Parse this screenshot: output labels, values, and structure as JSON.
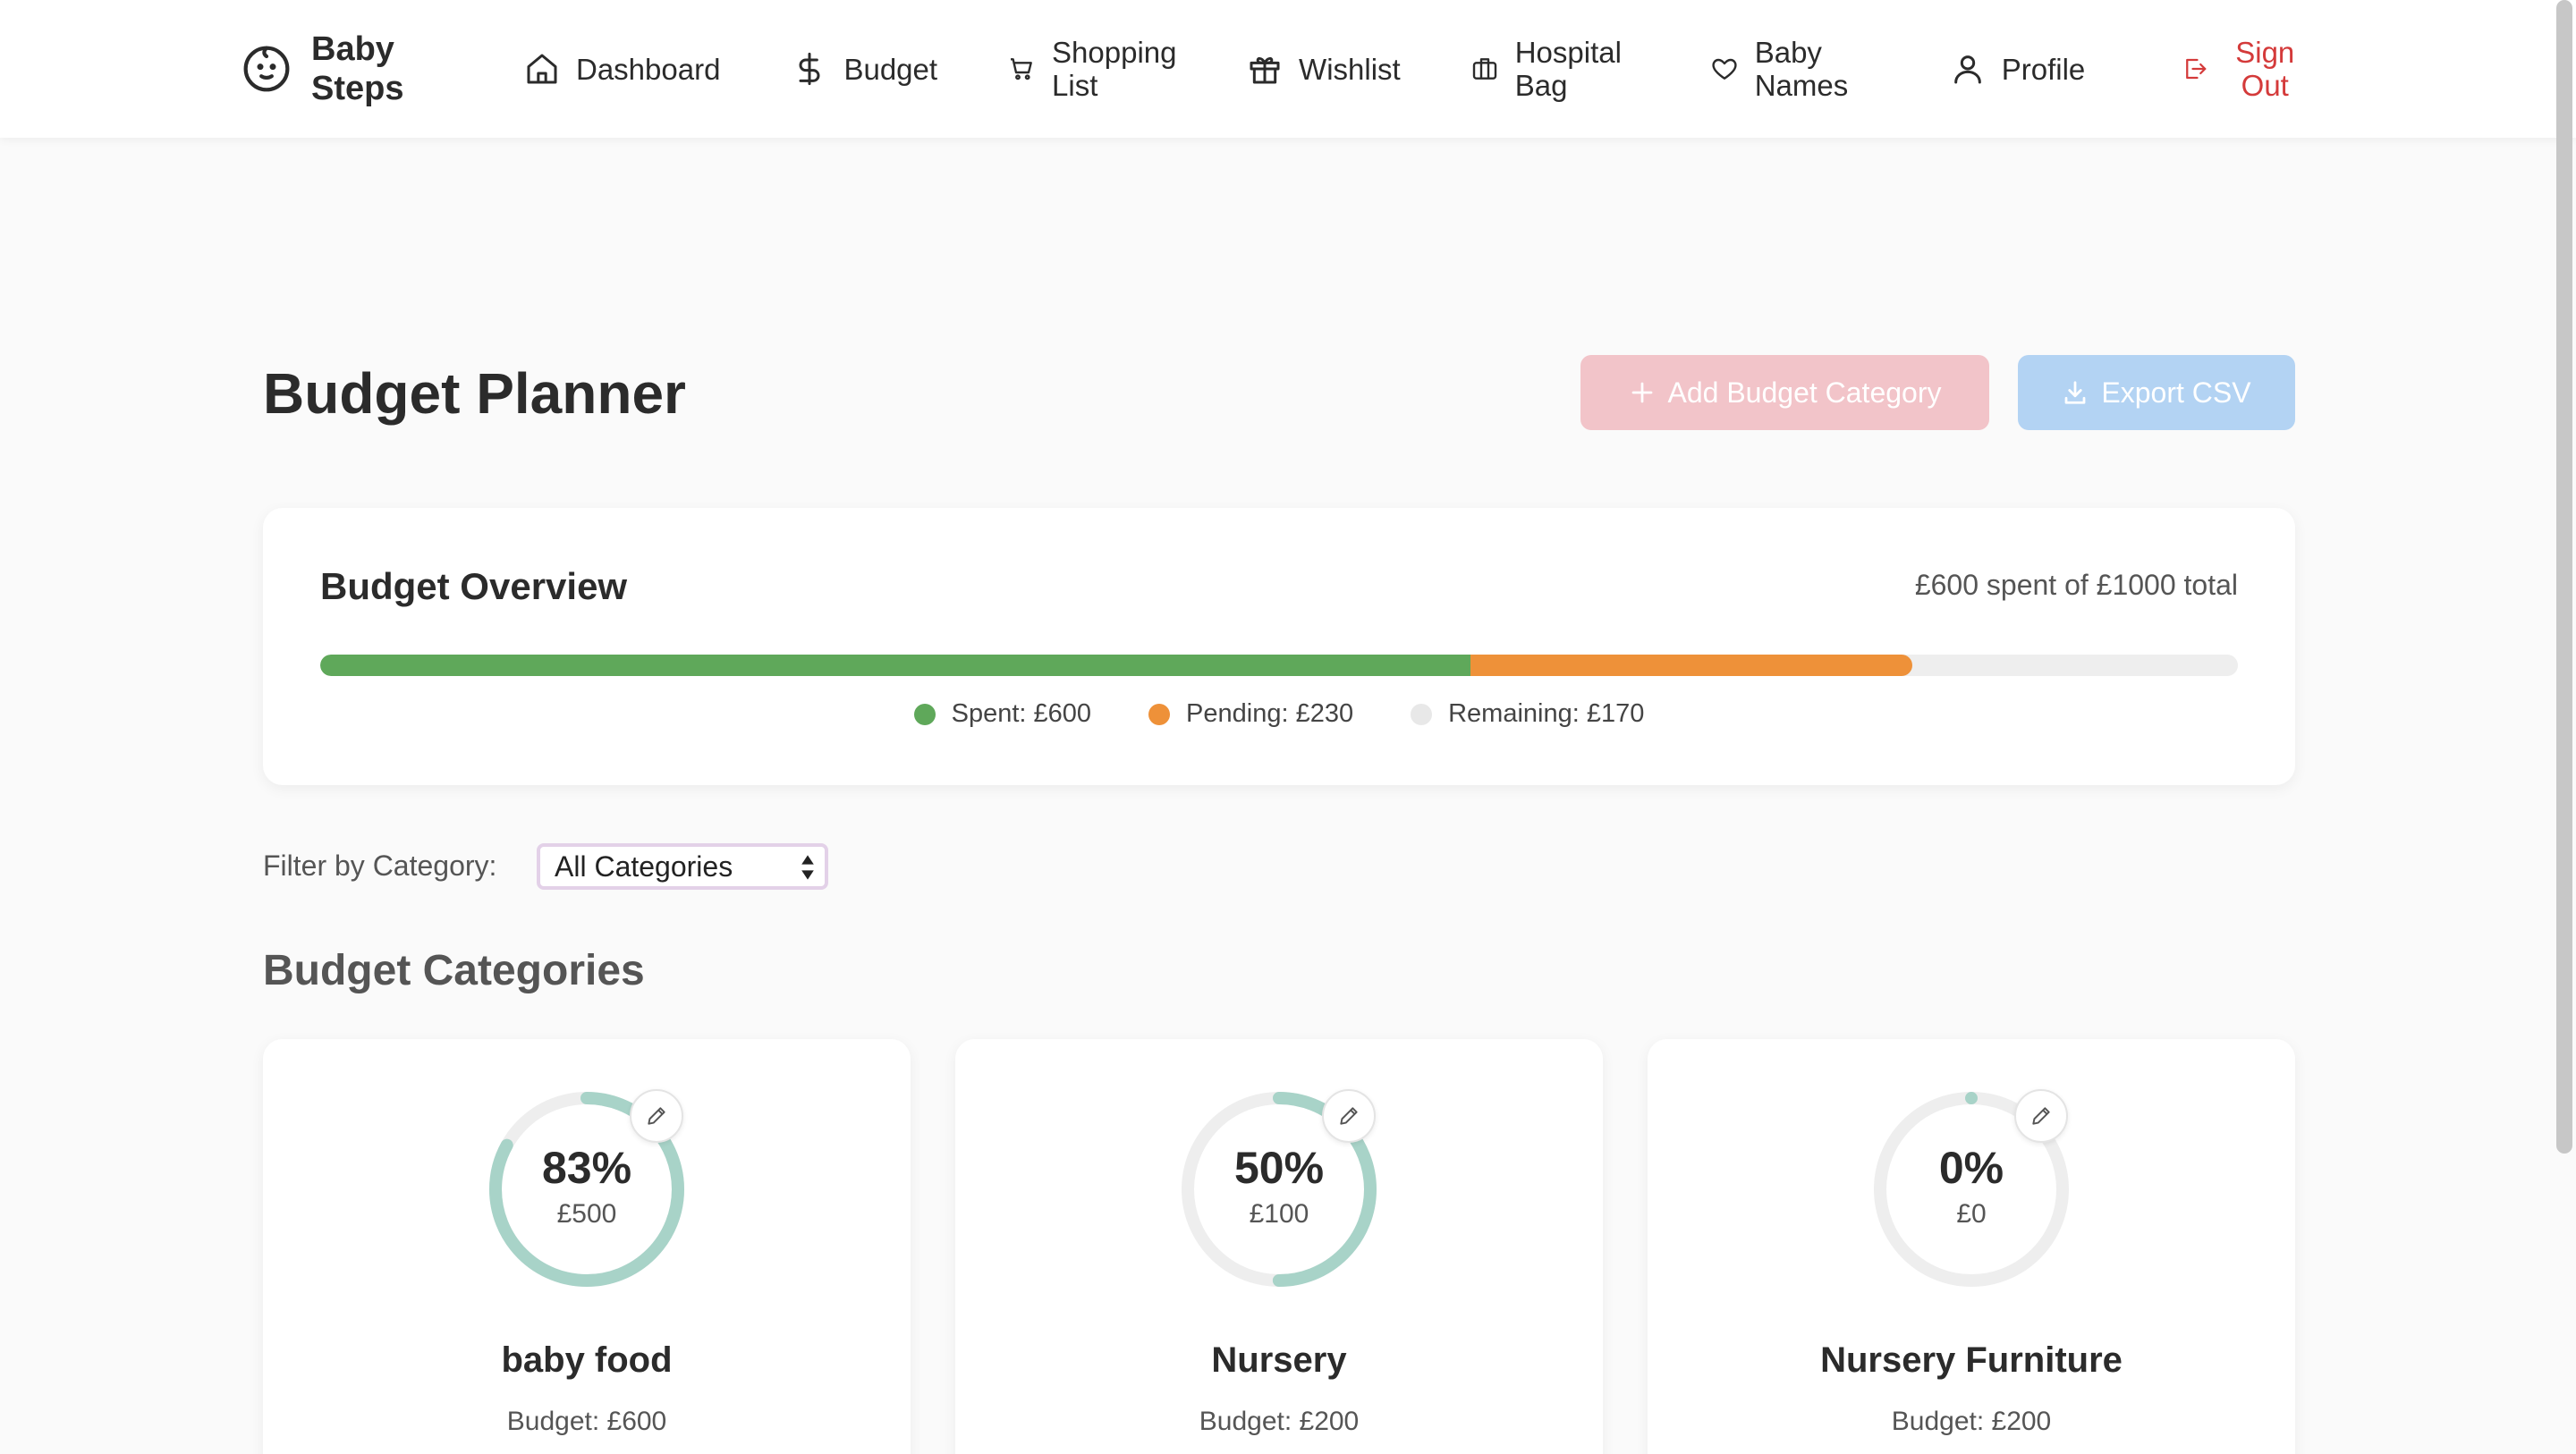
{
  "nav": {
    "brand": "Baby Steps",
    "items": [
      {
        "label": "Dashboard",
        "icon": "home-icon"
      },
      {
        "label": "Budget",
        "icon": "dollar-icon"
      },
      {
        "label": "Shopping List",
        "icon": "cart-icon"
      },
      {
        "label": "Wishlist",
        "icon": "gift-icon"
      },
      {
        "label": "Hospital Bag",
        "icon": "briefcase-icon"
      },
      {
        "label": "Baby Names",
        "icon": "heart-icon"
      },
      {
        "label": "Profile",
        "icon": "user-icon"
      }
    ],
    "signout": {
      "label": "Sign Out",
      "icon": "logout-icon",
      "color": "#d43a3a"
    }
  },
  "header": {
    "title": "Budget Planner",
    "add_label": "Add Budget Category",
    "export_label": "Export CSV"
  },
  "overview": {
    "title": "Budget Overview",
    "summary": "£600 spent of £1000 total",
    "total": 1000,
    "spent": 600,
    "pending": 230,
    "remaining": 170,
    "legend": {
      "spent": "Spent: £600",
      "pending": "Pending: £230",
      "remaining": "Remaining: £170"
    },
    "colors": {
      "spent": "#5fa85a",
      "pending": "#ee9139",
      "remaining": "#eeeeee"
    }
  },
  "filter": {
    "label": "Filter by Category:",
    "selected": "All Categories"
  },
  "categories_title": "Budget Categories",
  "ring_color": "#a8d3c8",
  "categories": [
    {
      "name": "baby food",
      "percent_label": "83%",
      "percent": 0.83,
      "amount": "£500",
      "budget": "Budget: £600"
    },
    {
      "name": "Nursery",
      "percent_label": "50%",
      "percent": 0.5,
      "amount": "£100",
      "budget": "Budget: £200"
    },
    {
      "name": "Nursery Furniture",
      "percent_label": "0%",
      "percent": 0.0,
      "amount": "£0",
      "budget": "Budget: £200"
    }
  ]
}
